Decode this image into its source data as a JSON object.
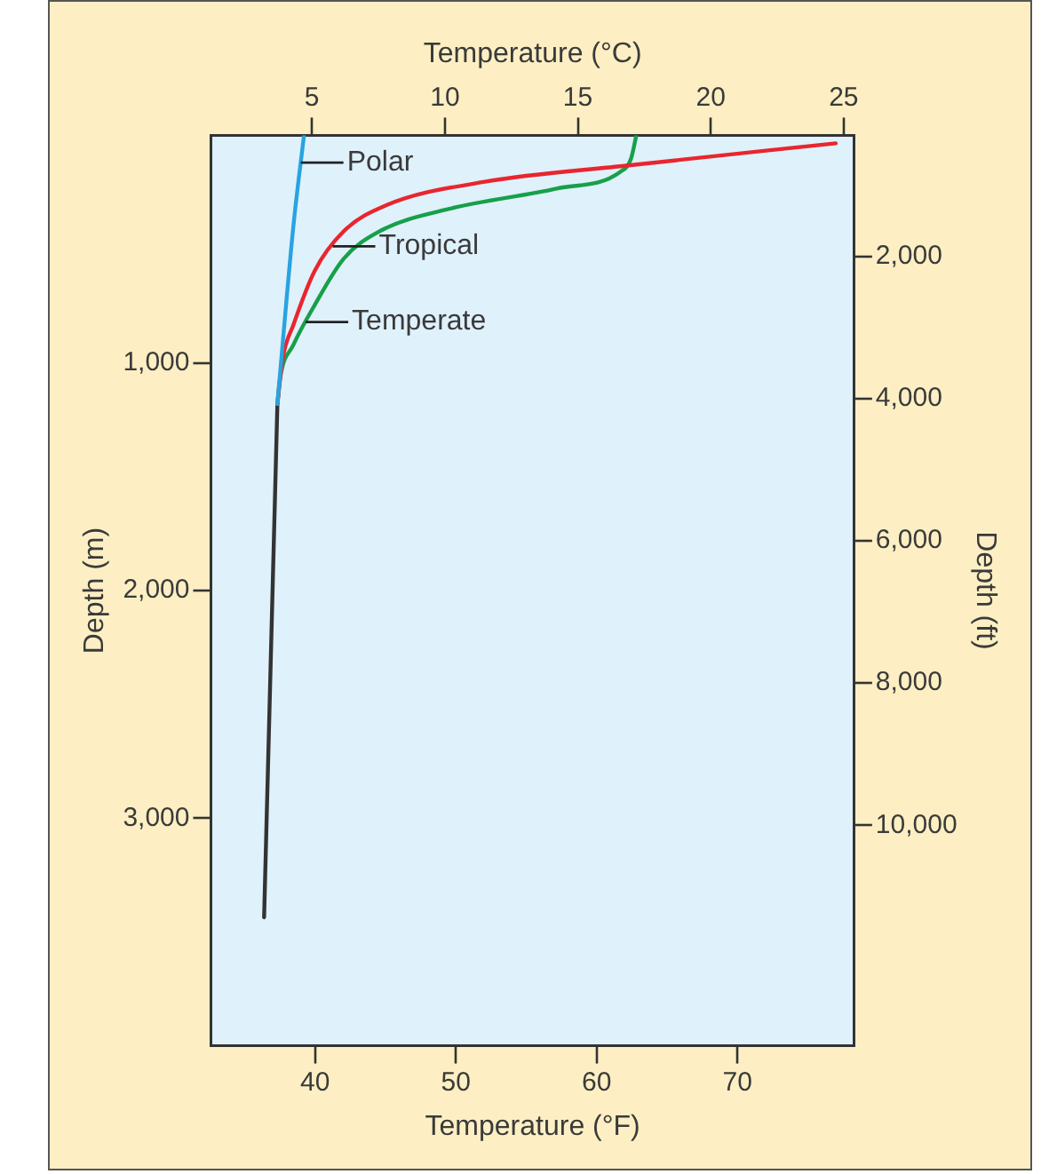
{
  "chart_data": {
    "type": "line",
    "xlabel": "Temperature (°C)",
    "x2label": "Temperature (°F)",
    "ylabel": "Depth (m)",
    "y2label": "Depth (ft)",
    "xlim": [
      1.2,
      25.4
    ],
    "xticks": [
      5,
      10,
      15,
      20,
      25
    ],
    "x2lim": [
      32.6,
      78.3
    ],
    "x2ticks": [
      40,
      50,
      60,
      70
    ],
    "ylim": [
      4000,
      0
    ],
    "yticks": [
      {
        "value": 1000,
        "label": "1,000"
      },
      {
        "value": 2000,
        "label": "2,000"
      },
      {
        "value": 3000,
        "label": "3,000"
      }
    ],
    "y2lim": [
      13100,
      300
    ],
    "y2ticks": [
      {
        "value": 2000,
        "label": "2,000"
      },
      {
        "value": 4000,
        "label": "4,000"
      },
      {
        "value": 6000,
        "label": "6,000"
      },
      {
        "value": 8000,
        "label": "8,000"
      },
      {
        "value": 10000,
        "label": "10,000"
      }
    ],
    "series": [
      {
        "name": "Polar",
        "color": "#29a3e0",
        "x": [
          4.7,
          4.3,
          3.7
        ],
        "values": [
          0,
          400,
          1180
        ]
      },
      {
        "name": "Tropical",
        "color": "#e8262f",
        "x": [
          24.7,
          16.9,
          11.5,
          7.8,
          6.2,
          5.1,
          4.3,
          3.9,
          3.7
        ],
        "values": [
          35,
          132,
          204,
          307,
          421,
          596,
          833,
          980,
          1180
        ]
      },
      {
        "name": "Temperate",
        "color": "#17a04a",
        "x": [
          17.2,
          17.0,
          16.6,
          14.2,
          10.2,
          7.5,
          6.2,
          5.1,
          4.3,
          3.8,
          3.7
        ],
        "values": [
          0,
          103,
          160,
          234,
          322,
          424,
          541,
          746,
          921,
          1068,
          1180
        ]
      },
      {
        "color": "#333333",
        "x": [
          3.7,
          3.2
        ],
        "values": [
          1180,
          3436
        ]
      }
    ],
    "grid": false,
    "legend": false,
    "marker": "none",
    "line_style": "solid"
  }
}
